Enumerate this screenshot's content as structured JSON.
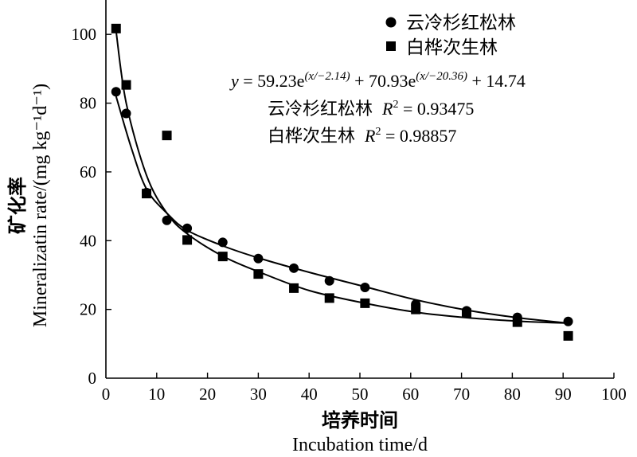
{
  "chart_data": {
    "type": "scatter",
    "xlabel_cn": "培养时间",
    "xlabel_en": "Incubation time/d",
    "ylabel_cn": "矿化率",
    "ylabel_en": "Mineralizatin rate/(mg kg⁻¹d⁻¹)",
    "xlim": [
      0,
      100
    ],
    "ylim": [
      0,
      110
    ],
    "x_ticks": [
      0,
      10,
      20,
      30,
      40,
      50,
      60,
      70,
      80,
      90,
      100
    ],
    "y_ticks": [
      0,
      20,
      40,
      60,
      80,
      100
    ],
    "legend_position": "top-right",
    "grid": false,
    "series": [
      {
        "name": "云冷杉红松林",
        "marker": "circle",
        "x": [
          2,
          4,
          8,
          12,
          16,
          23,
          30,
          37,
          44,
          51,
          61,
          71,
          81,
          91
        ],
        "y": [
          83.3,
          77.0,
          54.0,
          45.9,
          43.6,
          39.5,
          34.8,
          32.0,
          28.3,
          26.4,
          21.5,
          19.6,
          17.7,
          16.5
        ],
        "r2_label": "R",
        "r2_value": "0.93475"
      },
      {
        "name": "白桦次生林",
        "marker": "square",
        "x": [
          2,
          4,
          8,
          12,
          16,
          23,
          30,
          37,
          44,
          51,
          61,
          71,
          81,
          91
        ],
        "y": [
          101.7,
          85.3,
          53.7,
          70.6,
          40.2,
          35.4,
          30.3,
          26.2,
          23.3,
          21.8,
          20.0,
          18.9,
          16.3,
          12.3
        ],
        "r2_label": "R",
        "r2_value": "0.98857"
      }
    ],
    "equation": {
      "y": "y",
      "part1": " = 59.23e",
      "exp1": "(x/−2.14)",
      "part2": " + 70.93e",
      "exp2": "(x/−20.36)",
      "part3": " + 14.74"
    }
  }
}
